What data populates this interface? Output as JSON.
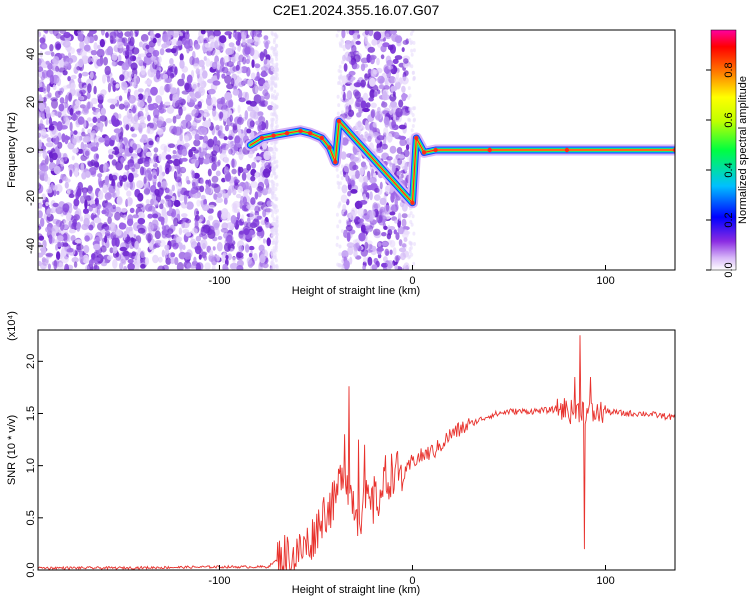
{
  "title": "C2E1.2024.355.16.07.G07",
  "chart_data": [
    {
      "type": "heatmap",
      "xlabel": "Height of straight line (km)",
      "ylabel": "Frequency (Hz)",
      "xlim": [
        -194,
        136
      ],
      "ylim": [
        -50,
        50
      ],
      "x_ticks": [
        "-100",
        "0",
        "100"
      ],
      "y_ticks": [
        "-40",
        "-20",
        "0",
        "20",
        "40"
      ],
      "colorbar": {
        "label": "Normalized spectral amplitude",
        "ticks": [
          "0.0",
          "0.2",
          "0.4",
          "0.6",
          "0.8"
        ],
        "range": [
          0,
          0.96
        ]
      },
      "noise_regions_km": [
        [
          -194,
          -73
        ],
        [
          -36,
          -2
        ]
      ],
      "signal_trace": [
        {
          "x": -84,
          "y": 2
        },
        {
          "x": -78,
          "y": 5
        },
        {
          "x": -72,
          "y": 6
        },
        {
          "x": -65,
          "y": 7
        },
        {
          "x": -58,
          "y": 8
        },
        {
          "x": -53,
          "y": 7
        },
        {
          "x": -47,
          "y": 5
        },
        {
          "x": -43,
          "y": 1
        },
        {
          "x": -40,
          "y": -5
        },
        {
          "x": -38,
          "y": 12
        },
        {
          "x": 0,
          "y": -22
        },
        {
          "x": 2,
          "y": 5
        },
        {
          "x": 6,
          "y": -1
        },
        {
          "x": 12,
          "y": 0
        },
        {
          "x": 40,
          "y": 0
        },
        {
          "x": 80,
          "y": 0
        },
        {
          "x": 136,
          "y": 0
        }
      ]
    },
    {
      "type": "line",
      "xlabel": "Height of straight line (km)",
      "ylabel": "SNR (10 * v/v)",
      "y_multiplier": "(x10⁴)",
      "xlim": [
        -194,
        136
      ],
      "ylim": [
        0,
        2.3
      ],
      "x_ticks": [
        "-100",
        "0",
        "100"
      ],
      "y_ticks": [
        "0.0",
        "0.5",
        "1.0",
        "1.5",
        "2.0"
      ],
      "series": [
        {
          "color": "#e8322d",
          "x": [
            -194,
            -150,
            -100,
            -75,
            -66,
            -62,
            -58,
            -52,
            -46,
            -40,
            -36,
            -32,
            -28,
            -24,
            -20,
            -16,
            -10,
            -4,
            0,
            6,
            12,
            20,
            30,
            40,
            50,
            60,
            70,
            78,
            84,
            88,
            90,
            92,
            96,
            100,
            110,
            120,
            136
          ],
          "y": [
            0.02,
            0.02,
            0.03,
            0.03,
            0.15,
            0.12,
            0.18,
            0.3,
            0.55,
            0.65,
            1.0,
            0.75,
            0.5,
            0.65,
            0.6,
            0.75,
            0.95,
            0.9,
            1.05,
            1.1,
            1.15,
            1.3,
            1.4,
            1.48,
            1.52,
            1.52,
            1.53,
            1.55,
            1.5,
            1.55,
            1.5,
            1.5,
            1.5,
            1.52,
            1.5,
            1.5,
            1.46
          ]
        }
      ],
      "spikes": [
        {
          "x": -33,
          "y": 1.76
        },
        {
          "x": -35,
          "y": 1.3
        },
        {
          "x": -28,
          "y": 1.25
        },
        {
          "x": -25,
          "y": 1.2
        },
        {
          "x": -20,
          "y": 0.9
        },
        {
          "x": -14,
          "y": 1.1
        },
        {
          "x": 84,
          "y": 1.85
        },
        {
          "x": 87,
          "y": 2.25
        },
        {
          "x": 89,
          "y": 0.2
        },
        {
          "x": 92,
          "y": 1.85
        }
      ]
    }
  ]
}
